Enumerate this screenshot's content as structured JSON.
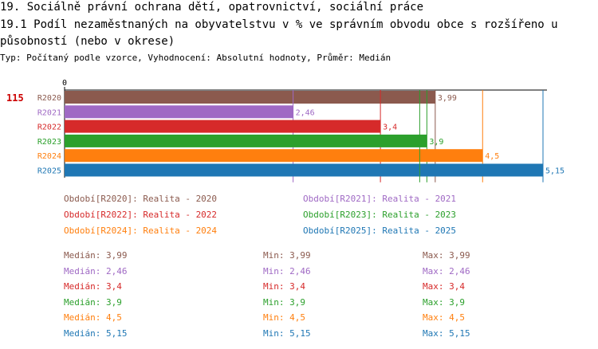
{
  "header": {
    "title": "19. Sociálně právní ochrana dětí, opatrovnictví, sociální práce",
    "subtitle": "19.1 Podíl nezaměstnaných na obyvatelstvu v % ve správním obvodu obce s rozšířeno u působností (nebo v okrese)",
    "meta": "Typ: Počítaný podle vzorce, Vyhodnocení: Absolutní hodnoty, Průměr: Medián",
    "code": "115"
  },
  "chart_data": {
    "type": "bar",
    "orientation": "horizontal",
    "axis_zero_label": "0",
    "xlim": [
      0,
      5.15
    ],
    "categories": [
      "R2020",
      "R2021",
      "R2022",
      "R2023",
      "R2024",
      "R2025"
    ],
    "values": [
      3.99,
      2.46,
      3.4,
      3.9,
      4.5,
      5.15
    ],
    "value_labels": [
      "3,99",
      "2,46",
      "3,4",
      "3,9",
      "4,5",
      "5,15"
    ],
    "colors": [
      "#8b5a4e",
      "#9f69c4",
      "#d62a2a",
      "#2ca02c",
      "#ff7f0e",
      "#1f77b4"
    ]
  },
  "legend": [
    {
      "label": "Období[R2020]: Realita - 2020",
      "color": "#8b5a4e"
    },
    {
      "label": "Období[R2021]: Realita - 2021",
      "color": "#9f69c4"
    },
    {
      "label": "Období[R2022]: Realita - 2022",
      "color": "#d62a2a"
    },
    {
      "label": "Období[R2023]: Realita - 2023",
      "color": "#2ca02c"
    },
    {
      "label": "Období[R2024]: Realita - 2024",
      "color": "#ff7f0e"
    },
    {
      "label": "Období[R2025]: Realita - 2025",
      "color": "#1f77b4"
    }
  ],
  "stats": [
    {
      "median": "Medián: 3,99",
      "min": "Min: 3,99",
      "max": "Max: 3,99",
      "color": "#8b5a4e"
    },
    {
      "median": "Medián: 2,46",
      "min": "Min: 2,46",
      "max": "Max: 2,46",
      "color": "#9f69c4"
    },
    {
      "median": "Medián: 3,4",
      "min": "Min: 3,4",
      "max": "Max: 3,4",
      "color": "#d62a2a"
    },
    {
      "median": "Medián: 3,9",
      "min": "Min: 3,9",
      "max": "Max: 3,9",
      "color": "#2ca02c"
    },
    {
      "median": "Medián: 4,5",
      "min": "Min: 4,5",
      "max": "Max: 4,5",
      "color": "#ff7f0e"
    },
    {
      "median": "Medián: 5,15",
      "min": "Min: 5,15",
      "max": "Max: 5,15",
      "color": "#1f77b4"
    }
  ]
}
